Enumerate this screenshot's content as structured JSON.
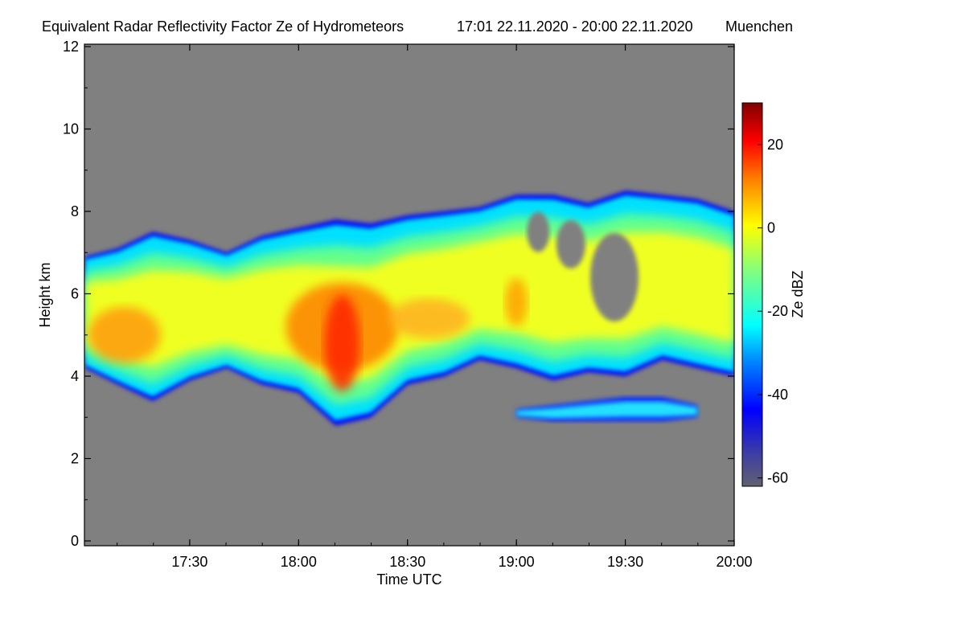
{
  "chart_data": {
    "type": "heatmap",
    "title": "Equivalent Radar Reflectivity Factor Ze of Hydrometeors",
    "time_range": "17:01 22.11.2020 - 20:00 22.11.2020",
    "location": "Muenchen",
    "xlabel": "Time UTC",
    "ylabel": "Height km",
    "x_range_utc_hours": [
      17.0167,
      20.0
    ],
    "x_ticks": [
      {
        "label": "17:30",
        "value": 17.5
      },
      {
        "label": "18:00",
        "value": 18.0
      },
      {
        "label": "18:30",
        "value": 18.5
      },
      {
        "label": "19:00",
        "value": 19.0
      },
      {
        "label": "19:30",
        "value": 19.5
      },
      {
        "label": "20:00",
        "value": 20.0
      }
    ],
    "ylim": [
      0,
      12
    ],
    "y_ticks": [
      {
        "label": "0",
        "value": 0
      },
      {
        "label": "2",
        "value": 2
      },
      {
        "label": "4",
        "value": 4
      },
      {
        "label": "6",
        "value": 6
      },
      {
        "label": "8",
        "value": 8
      },
      {
        "label": "10",
        "value": 10
      },
      {
        "label": "12",
        "value": 12
      }
    ],
    "colorbar": {
      "label": "Ze dBZ",
      "range": [
        -62,
        30
      ],
      "ticks": [
        {
          "label": "20",
          "value": 20
        },
        {
          "label": "0",
          "value": 0
        },
        {
          "label": "-20",
          "value": -20
        },
        {
          "label": "-40",
          "value": -40
        },
        {
          "label": "-60",
          "value": -60
        }
      ],
      "colormap": [
        "#606070",
        "#4040a0",
        "#0000ff",
        "#0080ff",
        "#00ffff",
        "#80ff80",
        "#ffff00",
        "#ff8000",
        "#ff0000",
        "#800000"
      ]
    },
    "background_color": "#808080",
    "cloud_cloud_main_layer": {
      "time_hours": [
        17.02,
        17.17,
        17.33,
        17.5,
        17.67,
        17.83,
        18.0,
        18.17,
        18.33,
        18.5,
        18.67,
        18.83,
        19.0,
        19.17,
        19.33,
        19.5,
        19.67,
        19.83,
        20.0
      ],
      "top_km": [
        6.9,
        7.1,
        7.5,
        7.3,
        7.0,
        7.4,
        7.6,
        7.8,
        7.7,
        7.9,
        8.0,
        8.1,
        8.4,
        8.4,
        8.2,
        8.5,
        8.4,
        8.3,
        8.0
      ],
      "base_km": [
        4.2,
        3.8,
        3.4,
        3.9,
        4.2,
        3.8,
        3.6,
        2.8,
        3.0,
        3.8,
        4.0,
        4.4,
        4.2,
        3.9,
        4.1,
        4.0,
        4.4,
        4.2,
        4.0
      ]
    },
    "cloud_lower_layer": {
      "time_hours": [
        19.0,
        19.17,
        19.33,
        19.5,
        19.67,
        19.83
      ],
      "top_km": [
        3.2,
        3.3,
        3.4,
        3.5,
        3.5,
        3.3
      ],
      "base_km": [
        3.0,
        2.9,
        2.9,
        2.9,
        2.9,
        3.0
      ]
    },
    "peak_reflectivity": {
      "time_hours": 18.2,
      "height_km": 4.8,
      "value_dbz": 20
    }
  }
}
